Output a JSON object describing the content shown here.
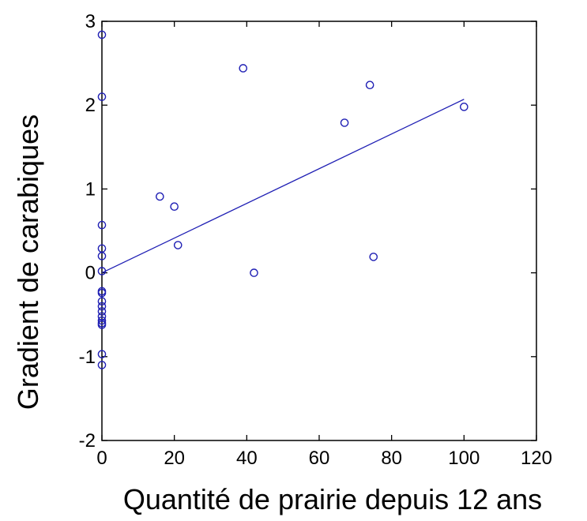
{
  "chart_data": {
    "type": "scatter",
    "title": "",
    "xlabel": "Quantité de prairie depuis 12 ans",
    "ylabel": "Gradient de carabiques",
    "xlim": [
      0,
      120
    ],
    "ylim": [
      -2,
      3
    ],
    "xticks": [
      0,
      20,
      40,
      60,
      80,
      100,
      120
    ],
    "yticks": [
      -2,
      -1,
      0,
      1,
      2,
      3
    ],
    "xtick_labels": [
      "0",
      "20",
      "40",
      "60",
      "80",
      "100",
      "120"
    ],
    "ytick_labels": [
      "-2",
      "-1",
      "0",
      "1",
      "2",
      "3"
    ],
    "grid": false,
    "color": "#1f1fb4",
    "series": [
      {
        "points": [
          [
            0,
            2.84
          ],
          [
            0,
            2.1
          ],
          [
            0,
            0.57
          ],
          [
            0,
            0.29
          ],
          [
            0,
            0.2
          ],
          [
            0,
            0.02
          ],
          [
            0,
            -0.22
          ],
          [
            0,
            -0.24
          ],
          [
            0,
            -0.34
          ],
          [
            0,
            -0.4
          ],
          [
            0,
            -0.46
          ],
          [
            0,
            -0.52
          ],
          [
            0,
            -0.57
          ],
          [
            0,
            -0.6
          ],
          [
            0,
            -0.62
          ],
          [
            0,
            -0.97
          ],
          [
            0,
            -1.1
          ],
          [
            16,
            0.91
          ],
          [
            20,
            0.79
          ],
          [
            21,
            0.33
          ],
          [
            39,
            2.44
          ],
          [
            42,
            0.0
          ],
          [
            67,
            1.79
          ],
          [
            74,
            2.24
          ],
          [
            75,
            0.19
          ],
          [
            100,
            1.98
          ]
        ]
      }
    ],
    "fit_line": {
      "x": [
        0,
        100
      ],
      "y": [
        0.0,
        2.07
      ]
    }
  }
}
